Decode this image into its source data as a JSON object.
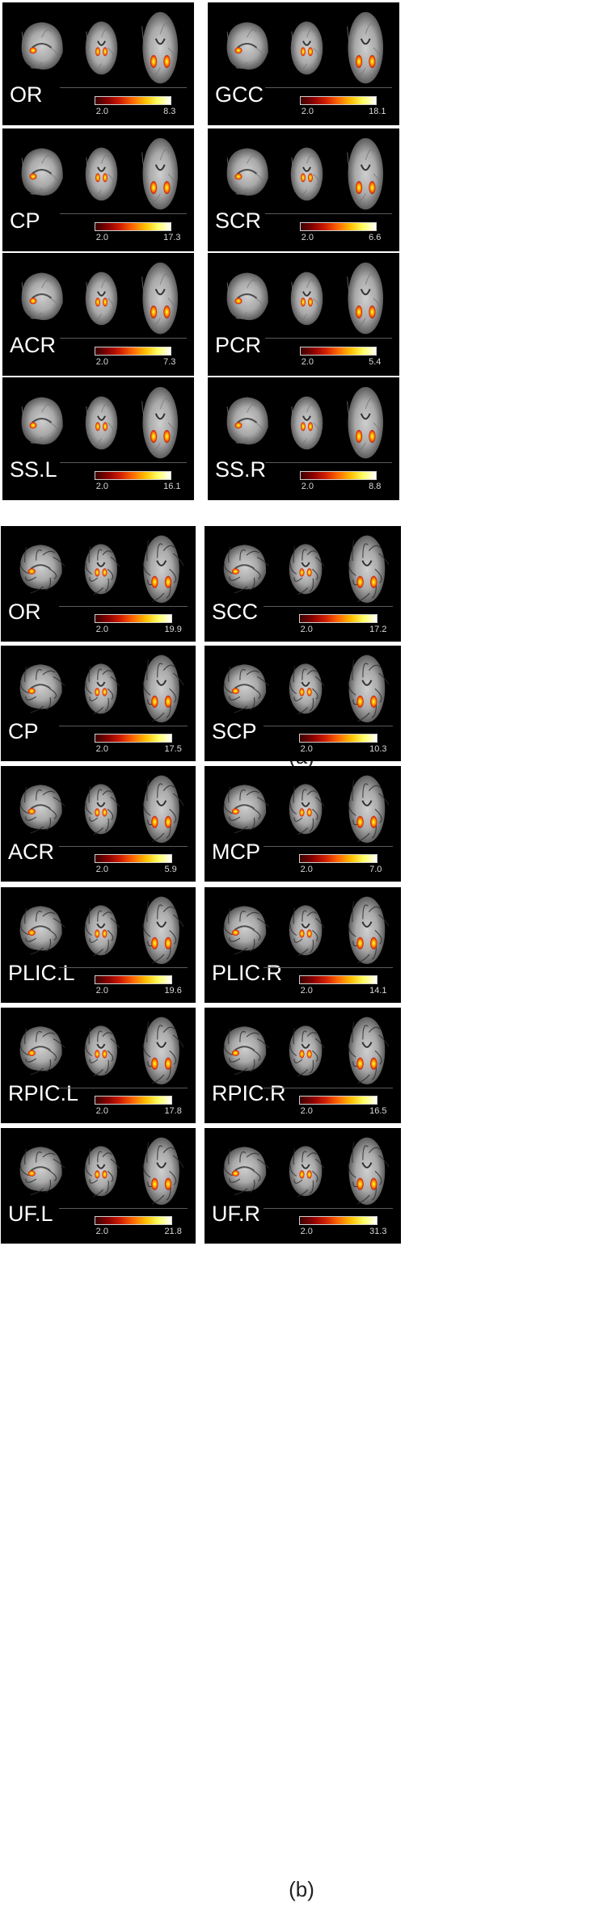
{
  "colormap": [
    "#3a0000",
    "#8b0000",
    "#d21f00",
    "#ff6a00",
    "#ffc000",
    "#ffff66",
    "#ffffff"
  ],
  "sections": [
    {
      "caption": "(a)",
      "style": "infant",
      "panels": [
        {
          "label": "OR",
          "min": "2.0",
          "max": "8.3"
        },
        {
          "label": "GCC",
          "min": "2.0",
          "max": "18.1"
        },
        {
          "label": "CP",
          "min": "2.0",
          "max": "17.3"
        },
        {
          "label": "SCR",
          "min": "2.0",
          "max": "6.6"
        },
        {
          "label": "ACR",
          "min": "2.0",
          "max": "7.3"
        },
        {
          "label": "PCR",
          "min": "2.0",
          "max": "5.4"
        },
        {
          "label": "SS.L",
          "min": "2.0",
          "max": "16.1"
        },
        {
          "label": "SS.R",
          "min": "2.0",
          "max": "8.8"
        }
      ]
    },
    {
      "caption": "(b)",
      "style": "adult",
      "panels": [
        {
          "label": "OR",
          "min": "2.0",
          "max": "19.9"
        },
        {
          "label": "SCC",
          "min": "2.0",
          "max": "17.2"
        },
        {
          "label": "CP",
          "min": "2.0",
          "max": "17.5"
        },
        {
          "label": "SCP",
          "min": "2.0",
          "max": "10.3"
        },
        {
          "label": "ACR",
          "min": "2.0",
          "max": "5.9"
        },
        {
          "label": "MCP",
          "min": "2.0",
          "max": "7.0"
        },
        {
          "label": "PLIC.L",
          "min": "2.0",
          "max": "19.6"
        },
        {
          "label": "PLIC.R",
          "min": "2.0",
          "max": "14.1"
        },
        {
          "label": "RPIC.L",
          "min": "2.0",
          "max": "17.8"
        },
        {
          "label": "RPIC.R",
          "min": "2.0",
          "max": "16.5"
        },
        {
          "label": "UF.L",
          "min": "2.0",
          "max": "21.8"
        },
        {
          "label": "UF.R",
          "min": "2.0",
          "max": "31.3"
        }
      ]
    }
  ]
}
